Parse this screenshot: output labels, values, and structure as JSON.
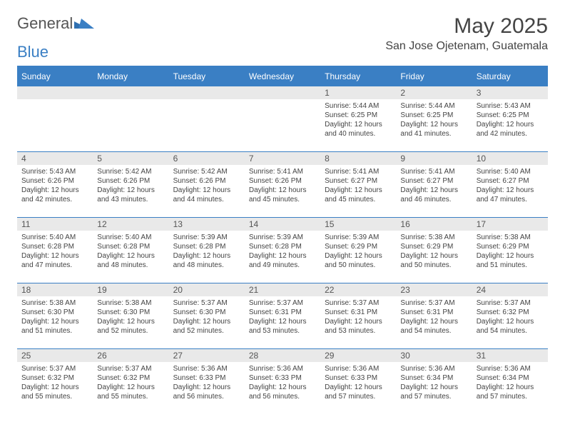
{
  "logo": {
    "textA": "General",
    "textB": "Blue"
  },
  "header": {
    "title": "May 2025",
    "location": "San Jose Ojetenam, Guatemala"
  },
  "calendar": {
    "header_bg": "#3a7fc4",
    "days": [
      "Sunday",
      "Monday",
      "Tuesday",
      "Wednesday",
      "Thursday",
      "Friday",
      "Saturday"
    ],
    "weeks": [
      [
        null,
        null,
        null,
        null,
        {
          "n": "1",
          "sr": "5:44 AM",
          "ss": "6:25 PM",
          "dl": "12 hours and 40 minutes."
        },
        {
          "n": "2",
          "sr": "5:44 AM",
          "ss": "6:25 PM",
          "dl": "12 hours and 41 minutes."
        },
        {
          "n": "3",
          "sr": "5:43 AM",
          "ss": "6:25 PM",
          "dl": "12 hours and 42 minutes."
        }
      ],
      [
        {
          "n": "4",
          "sr": "5:43 AM",
          "ss": "6:26 PM",
          "dl": "12 hours and 42 minutes."
        },
        {
          "n": "5",
          "sr": "5:42 AM",
          "ss": "6:26 PM",
          "dl": "12 hours and 43 minutes."
        },
        {
          "n": "6",
          "sr": "5:42 AM",
          "ss": "6:26 PM",
          "dl": "12 hours and 44 minutes."
        },
        {
          "n": "7",
          "sr": "5:41 AM",
          "ss": "6:26 PM",
          "dl": "12 hours and 45 minutes."
        },
        {
          "n": "8",
          "sr": "5:41 AM",
          "ss": "6:27 PM",
          "dl": "12 hours and 45 minutes."
        },
        {
          "n": "9",
          "sr": "5:41 AM",
          "ss": "6:27 PM",
          "dl": "12 hours and 46 minutes."
        },
        {
          "n": "10",
          "sr": "5:40 AM",
          "ss": "6:27 PM",
          "dl": "12 hours and 47 minutes."
        }
      ],
      [
        {
          "n": "11",
          "sr": "5:40 AM",
          "ss": "6:28 PM",
          "dl": "12 hours and 47 minutes."
        },
        {
          "n": "12",
          "sr": "5:40 AM",
          "ss": "6:28 PM",
          "dl": "12 hours and 48 minutes."
        },
        {
          "n": "13",
          "sr": "5:39 AM",
          "ss": "6:28 PM",
          "dl": "12 hours and 48 minutes."
        },
        {
          "n": "14",
          "sr": "5:39 AM",
          "ss": "6:28 PM",
          "dl": "12 hours and 49 minutes."
        },
        {
          "n": "15",
          "sr": "5:39 AM",
          "ss": "6:29 PM",
          "dl": "12 hours and 50 minutes."
        },
        {
          "n": "16",
          "sr": "5:38 AM",
          "ss": "6:29 PM",
          "dl": "12 hours and 50 minutes."
        },
        {
          "n": "17",
          "sr": "5:38 AM",
          "ss": "6:29 PM",
          "dl": "12 hours and 51 minutes."
        }
      ],
      [
        {
          "n": "18",
          "sr": "5:38 AM",
          "ss": "6:30 PM",
          "dl": "12 hours and 51 minutes."
        },
        {
          "n": "19",
          "sr": "5:38 AM",
          "ss": "6:30 PM",
          "dl": "12 hours and 52 minutes."
        },
        {
          "n": "20",
          "sr": "5:37 AM",
          "ss": "6:30 PM",
          "dl": "12 hours and 52 minutes."
        },
        {
          "n": "21",
          "sr": "5:37 AM",
          "ss": "6:31 PM",
          "dl": "12 hours and 53 minutes."
        },
        {
          "n": "22",
          "sr": "5:37 AM",
          "ss": "6:31 PM",
          "dl": "12 hours and 53 minutes."
        },
        {
          "n": "23",
          "sr": "5:37 AM",
          "ss": "6:31 PM",
          "dl": "12 hours and 54 minutes."
        },
        {
          "n": "24",
          "sr": "5:37 AM",
          "ss": "6:32 PM",
          "dl": "12 hours and 54 minutes."
        }
      ],
      [
        {
          "n": "25",
          "sr": "5:37 AM",
          "ss": "6:32 PM",
          "dl": "12 hours and 55 minutes."
        },
        {
          "n": "26",
          "sr": "5:37 AM",
          "ss": "6:32 PM",
          "dl": "12 hours and 55 minutes."
        },
        {
          "n": "27",
          "sr": "5:36 AM",
          "ss": "6:33 PM",
          "dl": "12 hours and 56 minutes."
        },
        {
          "n": "28",
          "sr": "5:36 AM",
          "ss": "6:33 PM",
          "dl": "12 hours and 56 minutes."
        },
        {
          "n": "29",
          "sr": "5:36 AM",
          "ss": "6:33 PM",
          "dl": "12 hours and 57 minutes."
        },
        {
          "n": "30",
          "sr": "5:36 AM",
          "ss": "6:34 PM",
          "dl": "12 hours and 57 minutes."
        },
        {
          "n": "31",
          "sr": "5:36 AM",
          "ss": "6:34 PM",
          "dl": "12 hours and 57 minutes."
        }
      ]
    ],
    "labels": {
      "sunrise": "Sunrise:",
      "sunset": "Sunset:",
      "daylight": "Daylight:"
    }
  }
}
